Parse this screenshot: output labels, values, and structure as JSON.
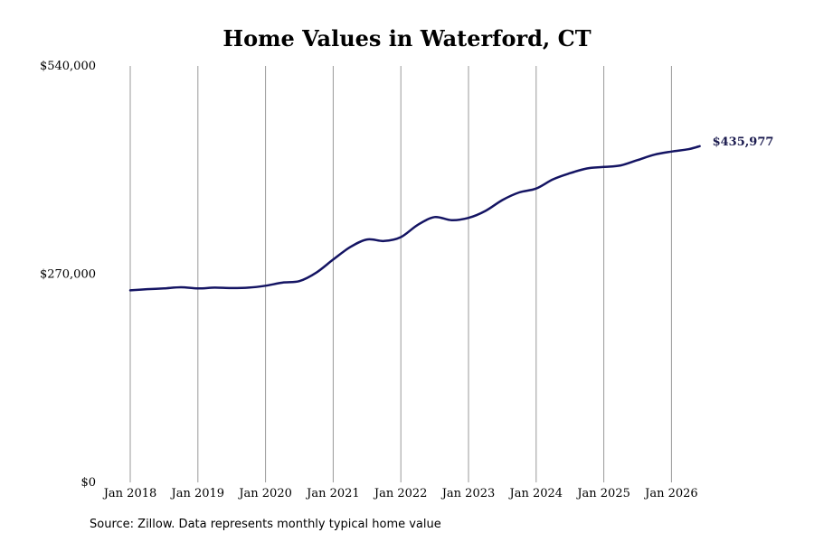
{
  "chart_data": {
    "type": "line",
    "title": "Home Values in Waterford, CT",
    "xlabel": "",
    "ylabel": "",
    "x_tick_labels": [
      "Jan 2018",
      "Jan 2019",
      "Jan 2020",
      "Jan 2021",
      "Jan 2022",
      "Jan 2023",
      "Jan 2024",
      "Jan 2025",
      "Jan 2026"
    ],
    "y_tick_labels": [
      "$0",
      "$270,000",
      "$540,000"
    ],
    "y_ticks": [
      0,
      270000,
      540000
    ],
    "ylim": [
      0,
      540000
    ],
    "xlim": [
      "2018-01",
      "2026-06"
    ],
    "grid": "vertical",
    "line_color": "#141463",
    "series": [
      {
        "points": [
          [
            "2018-01",
            249000
          ],
          [
            "2018-04",
            250500
          ],
          [
            "2018-07",
            251500
          ],
          [
            "2018-10",
            253000
          ],
          [
            "2019-01",
            251500
          ],
          [
            "2019-04",
            252500
          ],
          [
            "2019-07",
            252000
          ],
          [
            "2019-10",
            252500
          ],
          [
            "2020-01",
            255000
          ],
          [
            "2020-04",
            259000
          ],
          [
            "2020-07",
            261000
          ],
          [
            "2020-10",
            272000
          ],
          [
            "2021-01",
            289000
          ],
          [
            "2021-04",
            305000
          ],
          [
            "2021-07",
            315000
          ],
          [
            "2021-10",
            313000
          ],
          [
            "2022-01",
            318000
          ],
          [
            "2022-04",
            334000
          ],
          [
            "2022-07",
            344000
          ],
          [
            "2022-10",
            340000
          ],
          [
            "2023-01",
            343000
          ],
          [
            "2023-04",
            352000
          ],
          [
            "2023-07",
            366000
          ],
          [
            "2023-10",
            376000
          ],
          [
            "2024-01",
            381000
          ],
          [
            "2024-04",
            393000
          ],
          [
            "2024-07",
            401000
          ],
          [
            "2024-10",
            407000
          ],
          [
            "2025-01",
            409000
          ],
          [
            "2025-04",
            411000
          ],
          [
            "2025-07",
            418000
          ],
          [
            "2025-10",
            425000
          ],
          [
            "2026-01",
            429000
          ],
          [
            "2026-04",
            432000
          ],
          [
            "2026-06",
            435977
          ]
        ]
      }
    ],
    "end_label": "$435,977"
  },
  "source_text": "Source: Zillow. Data represents monthly typical home value"
}
